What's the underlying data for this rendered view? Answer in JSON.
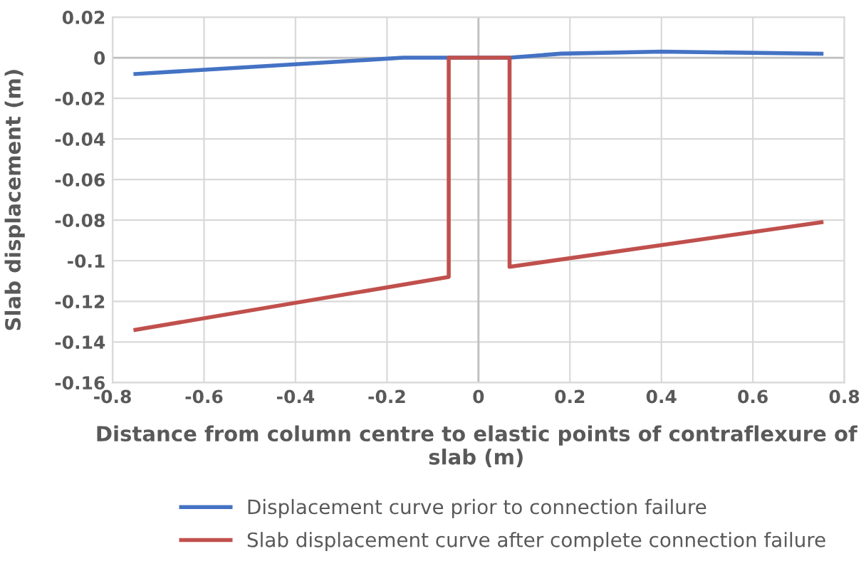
{
  "chart_data": {
    "type": "line",
    "xlabel": "Distance from column centre to elastic points of contraflexure of slab (m)",
    "ylabel": "Slab displacement (m)",
    "series": [
      {
        "name": "Displacement curve prior to connection failure",
        "color": "#4472c4",
        "x": [
          -0.75,
          -0.165,
          -0.065,
          0.068,
          0.18,
          0.4,
          0.75
        ],
        "values": [
          -0.008,
          0,
          0,
          0,
          0.002,
          0.003,
          0.002
        ]
      },
      {
        "name": "Slab displacement curve after complete connection failure",
        "color": "#c0504d",
        "x": [
          -0.75,
          -0.065,
          -0.065,
          0.068,
          0.068,
          0.75
        ],
        "values": [
          -0.134,
          -0.108,
          0,
          0,
          -0.103,
          -0.081
        ]
      }
    ],
    "xlim": [
      -0.8,
      0.8
    ],
    "xticks": [
      -0.8,
      -0.6,
      -0.4,
      -0.2,
      0,
      0.2,
      0.4,
      0.6,
      0.8
    ],
    "ylim": [
      -0.16,
      0.02
    ],
    "yticks": [
      -0.16,
      -0.14,
      -0.12,
      -0.1,
      -0.08,
      -0.06,
      -0.04,
      -0.02,
      0,
      0.02
    ],
    "grid": true,
    "legend": "bottom",
    "marker": "none",
    "line_style": "solid"
  }
}
